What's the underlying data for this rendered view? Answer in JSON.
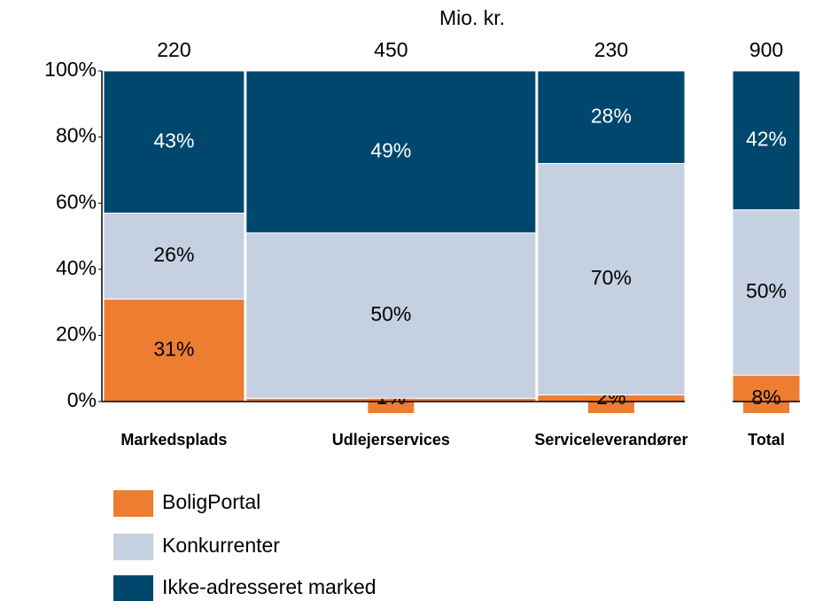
{
  "chart_data": {
    "type": "marimekko",
    "width_label": "Mio. kr.",
    "categories": [
      "Markedsplads",
      "Udlejerservices",
      "Serviceleverandører",
      "Total"
    ],
    "widths": [
      220,
      450,
      230,
      900
    ],
    "series": [
      {
        "name": "BoligPortal",
        "color": "#ed7d31",
        "values": [
          31,
          1,
          2,
          8
        ],
        "value_labels": [
          "31%",
          "1%",
          "2%",
          "8%"
        ]
      },
      {
        "name": "Konkurrenter",
        "color": "#c5d0e1",
        "values": [
          26,
          50,
          70,
          50
        ],
        "value_labels": [
          "26%",
          "50%",
          "70%",
          "50%"
        ]
      },
      {
        "name": "Ikke-adresseret marked",
        "color": "#00476e",
        "values": [
          43,
          49,
          28,
          42
        ],
        "value_labels": [
          "43%",
          "49%",
          "28%",
          "42%"
        ]
      }
    ],
    "ylim": [
      0,
      100
    ],
    "yticks": [
      {
        "value": 0,
        "label": "0%"
      },
      {
        "value": 20,
        "label": "20%"
      },
      {
        "value": 40,
        "label": "40%"
      },
      {
        "value": 60,
        "label": "60%"
      },
      {
        "value": 80,
        "label": "80%"
      },
      {
        "value": 100,
        "label": "100%"
      }
    ]
  }
}
